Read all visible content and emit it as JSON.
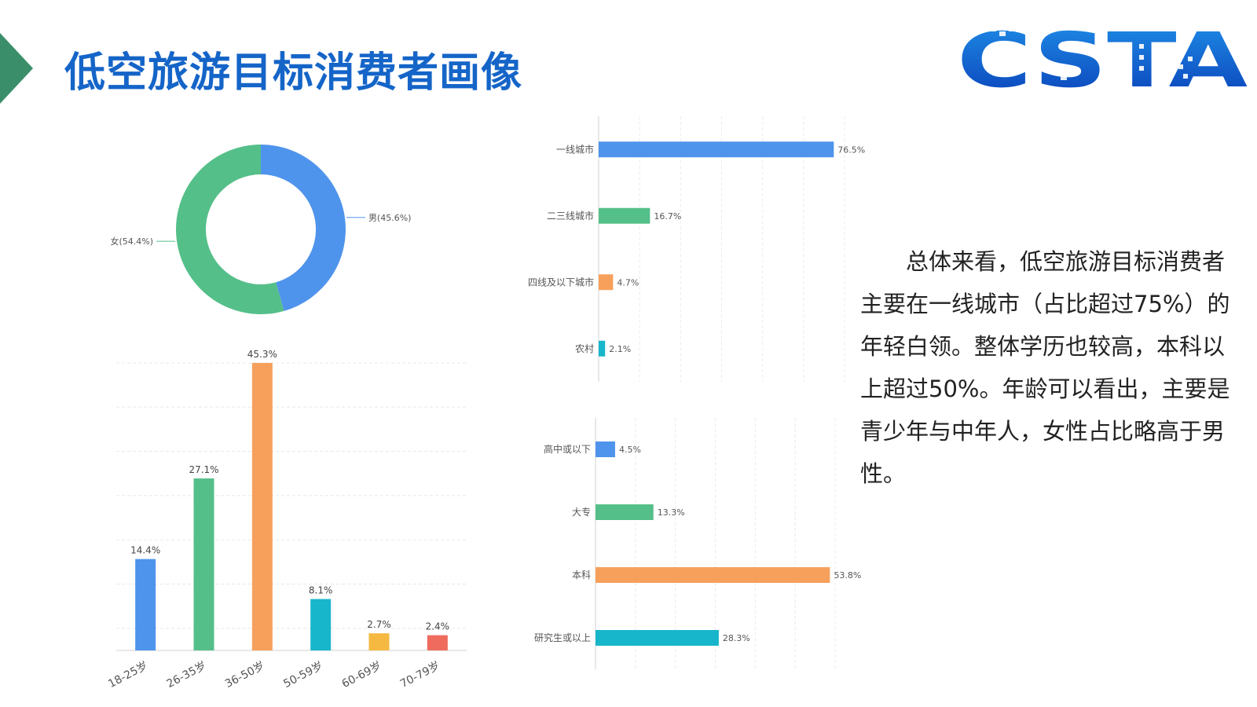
{
  "title": "低空旅游目标消费者画像",
  "logo_text": "CSTA",
  "summary": "总体来看，低空旅游目标消费者主要在一线城市（占比超过75%）的年轻白领。整体学历也较高，本科以上超过50%。年龄可以看出，主要是青少年与中年人，女性占比略高于男性。",
  "colors": {
    "blue": "#4f94ec",
    "green": "#55bf89",
    "orange": "#f7a05c",
    "cyan": "#17b6cb",
    "yellow": "#f5b941",
    "red": "#ee6b5e",
    "title": "#1565c8",
    "accent": "#3a8f6a"
  },
  "chart_data": [
    {
      "type": "pie",
      "donut": true,
      "slices": [
        {
          "label": "男(45.6%)",
          "value": 45.6,
          "color": "#4f94ec"
        },
        {
          "label": "女(54.4%)",
          "value": 54.4,
          "color": "#55bf89"
        }
      ]
    },
    {
      "type": "bar",
      "categories": [
        "18-25岁",
        "26-35岁",
        "36-50岁",
        "50-59岁",
        "60-69岁",
        "70-79岁"
      ],
      "values": [
        14.4,
        27.1,
        45.3,
        8.1,
        2.7,
        2.4
      ],
      "data_labels": [
        "14.4%",
        "27.1%",
        "45.3%",
        "8.1%",
        "2.7%",
        "2.4%"
      ],
      "colors": [
        "#4f94ec",
        "#55bf89",
        "#f7a05c",
        "#17b6cb",
        "#f5b941",
        "#ee6b5e"
      ],
      "ylim": [
        0,
        45.3
      ],
      "grid": true
    },
    {
      "type": "bar",
      "orientation": "horizontal",
      "categories": [
        "一线城市",
        "二三线城市",
        "四线及以下城市",
        "农村"
      ],
      "values": [
        76.5,
        16.7,
        4.7,
        2.1
      ],
      "data_labels": [
        "76.5%",
        "16.7%",
        "4.7%",
        "2.1%"
      ],
      "colors": [
        "#4f94ec",
        "#55bf89",
        "#f7a05c",
        "#17b6cb"
      ],
      "xlim": [
        0,
        80
      ],
      "grid": true
    },
    {
      "type": "bar",
      "orientation": "horizontal",
      "categories": [
        "高中或以下",
        "大专",
        "本科",
        "研究生或以上"
      ],
      "values": [
        4.5,
        13.3,
        53.8,
        28.3
      ],
      "data_labels": [
        "4.5%",
        "13.3%",
        "53.8%",
        "28.3%"
      ],
      "colors": [
        "#4f94ec",
        "#55bf89",
        "#f7a05c",
        "#17b6cb"
      ],
      "xlim": [
        0,
        55
      ],
      "grid": true
    }
  ]
}
